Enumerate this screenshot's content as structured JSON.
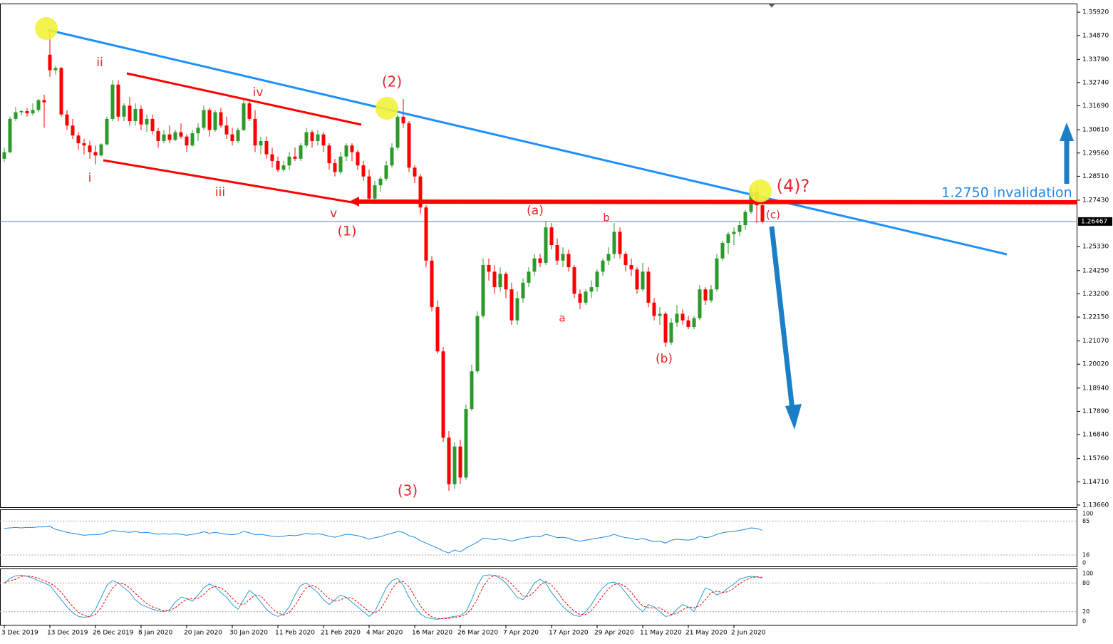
{
  "chart_data": {
    "type": "candlestick",
    "categories": [
      "3 Dec 2019",
      null,
      null,
      null,
      null,
      null,
      null,
      null,
      "13 Dec 2019",
      null,
      null,
      null,
      null,
      null,
      null,
      null,
      "26 Dec 2019",
      null,
      null,
      null,
      null,
      null,
      null,
      null,
      "8 Jan 2020",
      null,
      null,
      null,
      null,
      null,
      null,
      null,
      "20 Jan 2020",
      null,
      null,
      null,
      null,
      null,
      null,
      null,
      "30 Jan 2020",
      null,
      null,
      null,
      null,
      null,
      null,
      null,
      "11 Feb 2020",
      null,
      null,
      null,
      null,
      null,
      null,
      null,
      "21 Feb 2020",
      null,
      null,
      null,
      null,
      null,
      null,
      null,
      "4 Mar 2020",
      null,
      null,
      null,
      null,
      null,
      null,
      null,
      "16 Mar 2020",
      null,
      null,
      null,
      null,
      null,
      null,
      null,
      "26 Mar 2020",
      null,
      null,
      null,
      null,
      null,
      null,
      null,
      "7 Apr 2020",
      null,
      null,
      null,
      null,
      null,
      null,
      null,
      "17 Apr 2020",
      null,
      null,
      null,
      null,
      null,
      null,
      null,
      "29 Apr 2020",
      null,
      null,
      null,
      null,
      null,
      null,
      null,
      "11 May 2020",
      null,
      null,
      null,
      null,
      null,
      null,
      null,
      "21 May 2020",
      null,
      null,
      null,
      null,
      null,
      null,
      null,
      "2 Jun 2020",
      null,
      null,
      null,
      null,
      null
    ],
    "open": [
      1.293,
      1.296,
      1.311,
      1.314,
      1.3145,
      1.3135,
      1.315,
      1.3195,
      1.34,
      1.333,
      1.334,
      1.313,
      1.308,
      1.3035,
      1.3,
      1.299,
      1.296,
      1.2945,
      1.2995,
      1.311,
      1.3265,
      1.312,
      1.317,
      1.31,
      1.3155,
      1.3085,
      1.311,
      1.3055,
      1.301,
      1.304,
      1.3015,
      1.305,
      1.303,
      1.299,
      1.3045,
      1.307,
      1.315,
      1.306,
      1.314,
      1.308,
      1.304,
      1.301,
      1.306,
      1.318,
      1.311,
      1.299,
      1.301,
      1.295,
      1.292,
      1.288,
      1.29,
      1.294,
      1.293,
      1.299,
      1.305,
      1.301,
      1.304,
      1.299,
      1.291,
      1.287,
      1.294,
      1.299,
      1.296,
      1.29,
      1.285,
      1.275,
      1.281,
      1.284,
      1.29,
      1.298,
      1.312,
      1.309,
      1.289,
      1.285,
      1.271,
      1.247,
      1.226,
      1.206,
      1.167,
      1.146,
      1.163,
      1.149,
      1.18,
      1.197,
      1.222,
      1.245,
      1.242,
      1.235,
      1.241,
      1.234,
      1.22,
      1.23,
      1.237,
      1.242,
      1.248,
      1.246,
      1.262,
      1.254,
      1.247,
      1.25,
      1.244,
      1.232,
      1.228,
      1.233,
      1.235,
      1.242,
      1.247,
      1.25,
      1.26,
      1.25,
      1.245,
      1.243,
      1.234,
      1.242,
      1.228,
      1.222,
      1.223,
      1.21,
      1.219,
      1.223,
      1.22,
      1.217,
      1.221,
      1.234,
      1.229,
      1.234,
      1.248,
      1.255,
      1.259,
      1.26,
      1.263,
      1.269,
      1.278,
      1.272
    ],
    "high": [
      1.298,
      1.312,
      1.3165,
      1.315,
      1.316,
      1.318,
      1.32,
      1.322,
      1.3514,
      1.335,
      1.3345,
      1.315,
      1.311,
      1.305,
      1.302,
      1.301,
      1.299,
      1.3,
      1.312,
      1.3285,
      1.3285,
      1.318,
      1.321,
      1.318,
      1.317,
      1.313,
      1.313,
      1.307,
      1.306,
      1.308,
      1.306,
      1.309,
      1.304,
      1.306,
      1.309,
      1.317,
      1.316,
      1.315,
      1.316,
      1.312,
      1.307,
      1.307,
      1.32,
      1.319,
      1.315,
      1.303,
      1.303,
      1.298,
      1.294,
      1.292,
      1.296,
      1.298,
      1.3,
      1.307,
      1.306,
      1.306,
      1.305,
      1.3,
      1.293,
      1.296,
      1.3,
      1.3,
      1.297,
      1.292,
      1.288,
      1.283,
      1.285,
      1.292,
      1.3,
      1.313,
      1.32,
      1.31,
      1.29,
      1.286,
      1.272,
      1.249,
      1.229,
      1.208,
      1.17,
      1.165,
      1.166,
      1.182,
      1.2,
      1.224,
      1.248,
      1.248,
      1.245,
      1.244,
      1.242,
      1.237,
      1.233,
      1.239,
      1.244,
      1.25,
      1.25,
      1.265,
      1.264,
      1.257,
      1.253,
      1.252,
      1.245,
      1.234,
      1.234,
      1.238,
      1.243,
      1.248,
      1.253,
      1.264,
      1.262,
      1.251,
      1.248,
      1.244,
      1.246,
      1.244,
      1.23,
      1.226,
      1.224,
      1.221,
      1.227,
      1.225,
      1.222,
      1.222,
      1.236,
      1.235,
      1.236,
      1.25,
      1.256,
      1.26,
      1.262,
      1.265,
      1.27,
      1.28,
      1.281,
      1.273
    ],
    "low": [
      1.2915,
      1.2955,
      1.31,
      1.3125,
      1.312,
      1.3125,
      1.314,
      1.307,
      1.33,
      1.331,
      1.312,
      1.306,
      1.302,
      1.297,
      1.295,
      1.293,
      1.2905,
      1.294,
      1.299,
      1.31,
      1.31,
      1.31,
      1.308,
      1.308,
      1.306,
      1.305,
      1.304,
      1.298,
      1.3,
      1.3,
      1.301,
      1.302,
      1.296,
      1.2985,
      1.301,
      1.306,
      1.303,
      1.305,
      1.307,
      1.302,
      1.299,
      1.3,
      1.3055,
      1.31,
      1.296,
      1.295,
      1.293,
      1.289,
      1.287,
      1.287,
      1.288,
      1.292,
      1.292,
      1.298,
      1.298,
      1.299,
      1.296,
      1.288,
      1.285,
      1.286,
      1.292,
      1.292,
      1.288,
      1.283,
      1.273,
      1.2725,
      1.278,
      1.283,
      1.289,
      1.297,
      1.307,
      1.287,
      1.282,
      1.268,
      1.244,
      1.224,
      1.205,
      1.165,
      1.143,
      1.144,
      1.146,
      1.148,
      1.179,
      1.196,
      1.221,
      1.238,
      1.232,
      1.233,
      1.23,
      1.218,
      1.218,
      1.228,
      1.235,
      1.24,
      1.244,
      1.245,
      1.252,
      1.245,
      1.244,
      1.242,
      1.23,
      1.225,
      1.227,
      1.23,
      1.233,
      1.24,
      1.245,
      1.248,
      1.248,
      1.242,
      1.24,
      1.232,
      1.233,
      1.226,
      1.22,
      1.218,
      1.208,
      1.209,
      1.217,
      1.218,
      1.216,
      1.216,
      1.22,
      1.227,
      1.228,
      1.233,
      1.247,
      1.25,
      1.254,
      1.258,
      1.261,
      1.268,
      1.264,
      1.264
    ],
    "close": [
      1.296,
      1.311,
      1.314,
      1.3145,
      1.3135,
      1.315,
      1.3195,
      1.3185,
      1.333,
      1.334,
      1.313,
      1.308,
      1.3035,
      1.3,
      1.299,
      1.296,
      1.2945,
      1.2995,
      1.311,
      1.3265,
      1.312,
      1.317,
      1.31,
      1.3155,
      1.3085,
      1.311,
      1.3055,
      1.301,
      1.304,
      1.3015,
      1.305,
      1.303,
      1.299,
      1.3045,
      1.307,
      1.315,
      1.306,
      1.314,
      1.308,
      1.304,
      1.301,
      1.306,
      1.318,
      1.311,
      1.299,
      1.301,
      1.295,
      1.292,
      1.288,
      1.29,
      1.294,
      1.293,
      1.299,
      1.305,
      1.301,
      1.304,
      1.299,
      1.291,
      1.287,
      1.294,
      1.299,
      1.296,
      1.29,
      1.285,
      1.275,
      1.281,
      1.284,
      1.29,
      1.298,
      1.312,
      1.309,
      1.289,
      1.285,
      1.271,
      1.247,
      1.226,
      1.206,
      1.167,
      1.146,
      1.163,
      1.149,
      1.18,
      1.197,
      1.222,
      1.245,
      1.242,
      1.235,
      1.241,
      1.234,
      1.22,
      1.23,
      1.237,
      1.242,
      1.248,
      1.246,
      1.262,
      1.254,
      1.247,
      1.25,
      1.244,
      1.232,
      1.228,
      1.233,
      1.235,
      1.242,
      1.247,
      1.25,
      1.26,
      1.25,
      1.245,
      1.243,
      1.234,
      1.242,
      1.228,
      1.222,
      1.223,
      1.21,
      1.219,
      1.223,
      1.22,
      1.217,
      1.221,
      1.234,
      1.229,
      1.234,
      1.248,
      1.255,
      1.259,
      1.26,
      1.263,
      1.269,
      1.278,
      1.272,
      1.26467
    ],
    "up_color": "#2b9a2b",
    "down_color": "#ff0000",
    "ylim": [
      1.1356,
      1.3631
    ],
    "yticks": [
      {
        "value": 1.3592,
        "label": "1.35920"
      },
      {
        "value": 1.3487,
        "label": "1.34870"
      },
      {
        "value": 1.3379,
        "label": "1.33790"
      },
      {
        "value": 1.3274,
        "label": "1.32740"
      },
      {
        "value": 1.3169,
        "label": "1.31690"
      },
      {
        "value": 1.3061,
        "label": "1.30610"
      },
      {
        "value": 1.2956,
        "label": "1.29560"
      },
      {
        "value": 1.2851,
        "label": "1.28510"
      },
      {
        "value": 1.2743,
        "label": "1.27430"
      },
      {
        "value": 1.2533,
        "label": "1.25330"
      },
      {
        "value": 1.2425,
        "label": "1.24250"
      },
      {
        "value": 1.232,
        "label": "1.23200"
      },
      {
        "value": 1.2215,
        "label": "1.22150"
      },
      {
        "value": 1.2107,
        "label": "1.21070"
      },
      {
        "value": 1.2002,
        "label": "1.20020"
      },
      {
        "value": 1.1894,
        "label": "1.18940"
      },
      {
        "value": 1.1789,
        "label": "1.17890"
      },
      {
        "value": 1.1684,
        "label": "1.16840"
      },
      {
        "value": 1.1576,
        "label": "1.15760"
      },
      {
        "value": 1.1471,
        "label": "1.14710"
      },
      {
        "value": 1.1366,
        "label": "1.13660"
      }
    ],
    "last_price": 1.26467,
    "annotations": [
      {
        "text": "ii",
        "color": "#e8262a"
      },
      {
        "text": "i",
        "color": "#e8262a"
      },
      {
        "text": "iv",
        "color": "#e8262a"
      },
      {
        "text": "iii",
        "color": "#e8262a"
      },
      {
        "text": "v",
        "color": "#e8262a"
      },
      {
        "text": "(1)",
        "color": "#e8262a"
      },
      {
        "text": "(2)",
        "color": "#e8262a"
      },
      {
        "text": "(3)",
        "color": "#e8262a"
      },
      {
        "text": "(a)",
        "color": "#e8262a"
      },
      {
        "text": "a",
        "color": "#e8262a"
      },
      {
        "text": "b",
        "color": "#e8262a"
      },
      {
        "text": "(b)",
        "color": "#e8262a"
      },
      {
        "text": "(c)",
        "color": "#e8262a"
      },
      {
        "text": "(4)?",
        "color": "#e8262a"
      },
      {
        "text": "1.2750 invalidation",
        "color": "#1e88e5"
      }
    ],
    "panels": [
      {
        "ylim": [
          0,
          100
        ],
        "yticks": [
          100,
          85,
          16,
          0
        ],
        "series": [
          {
            "color": "#1e88e5",
            "dashed": false,
            "values": [
              70,
              71,
              72,
              71,
              72,
              72,
              73,
              73,
              74,
              68,
              65,
              62,
              60,
              58,
              56,
              57,
              57,
              58,
              62,
              66,
              64,
              63,
              62,
              64,
              61,
              62,
              60,
              58,
              59,
              58,
              59,
              58,
              56,
              58,
              60,
              63,
              60,
              62,
              60,
              58,
              57,
              59,
              64,
              61,
              57,
              58,
              56,
              54,
              53,
              54,
              56,
              55,
              57,
              60,
              58,
              59,
              57,
              54,
              52,
              55,
              58,
              57,
              55,
              52,
              48,
              51,
              53,
              57,
              60,
              64,
              62,
              55,
              52,
              45,
              40,
              35,
              30,
              24,
              20,
              26,
              22,
              30,
              36,
              42,
              50,
              49,
              47,
              49,
              47,
              44,
              47,
              50,
              52,
              54,
              53,
              58,
              55,
              51,
              52,
              50,
              46,
              44,
              46,
              48,
              50,
              52,
              54,
              58,
              54,
              51,
              50,
              47,
              50,
              46,
              43,
              44,
              40,
              46,
              48,
              47,
              46,
              48,
              54,
              51,
              53,
              58,
              61,
              63,
              64,
              66,
              68,
              71,
              70,
              66
            ]
          }
        ]
      },
      {
        "ylim": [
          0,
          100
        ],
        "yticks": [
          100,
          80,
          20,
          0
        ],
        "series": [
          {
            "color": "#2a9fd6",
            "dashed": false,
            "values": [
              80,
              90,
              95,
              96,
              94,
              90,
              85,
              80,
              75,
              60,
              45,
              30,
              18,
              10,
              8,
              10,
              25,
              50,
              75,
              85,
              80,
              70,
              60,
              45,
              35,
              30,
              25,
              22,
              20,
              24,
              40,
              50,
              48,
              42,
              55,
              70,
              78,
              72,
              60,
              50,
              35,
              25,
              45,
              65,
              55,
              40,
              25,
              15,
              10,
              15,
              30,
              55,
              75,
              80,
              70,
              60,
              45,
              35,
              45,
              55,
              50,
              40,
              30,
              20,
              10,
              20,
              45,
              70,
              85,
              90,
              75,
              50,
              30,
              15,
              8,
              5,
              4,
              6,
              8,
              10,
              12,
              20,
              45,
              75,
              95,
              97,
              96,
              90,
              80,
              65,
              50,
              45,
              60,
              80,
              88,
              80,
              60,
              45,
              30,
              20,
              12,
              10,
              20,
              35,
              55,
              70,
              80,
              82,
              75,
              60,
              45,
              30,
              20,
              35,
              30,
              20,
              10,
              12,
              25,
              35,
              30,
              20,
              45,
              70,
              65,
              55,
              60,
              70,
              78,
              88,
              92,
              94,
              93,
              90
            ]
          },
          {
            "color": "#ff0000",
            "dashed": true,
            "values": [
              80,
              85,
              88,
              94,
              95,
              93,
              90,
              85,
              80,
              72,
              60,
              45,
              31,
              19,
              12,
              9,
              14,
              28,
              50,
              70,
              80,
              78,
              70,
              58,
              47,
              37,
              30,
              26,
              22,
              22,
              28,
              38,
              46,
              47,
              48,
              56,
              68,
              73,
              70,
              61,
              48,
              37,
              35,
              45,
              55,
              53,
              40,
              27,
              17,
              13,
              18,
              33,
              53,
              70,
              75,
              70,
              58,
              47,
              42,
              45,
              50,
              48,
              40,
              30,
              20,
              17,
              25,
              45,
              67,
              82,
              83,
              72,
              52,
              32,
              18,
              9,
              6,
              5,
              6,
              8,
              10,
              14,
              26,
              47,
              72,
              89,
              96,
              94,
              89,
              78,
              65,
              53,
              52,
              62,
              76,
              83,
              76,
              62,
              45,
              32,
              21,
              14,
              14,
              22,
              37,
              53,
              68,
              77,
              79,
              72,
              60,
              45,
              32,
              28,
              28,
              28,
              20,
              14,
              16,
              24,
              30,
              28,
              32,
              45,
              60,
              63,
              60,
              62,
              69,
              79,
              86,
              91,
              93,
              92
            ]
          }
        ]
      }
    ]
  }
}
